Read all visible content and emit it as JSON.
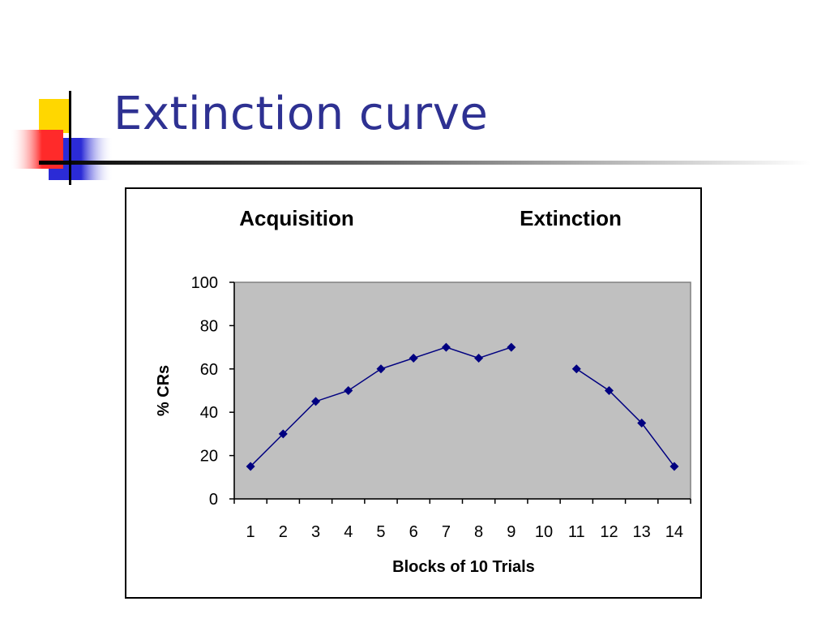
{
  "slide": {
    "title": "Extinction curve"
  },
  "colors": {
    "title": "#2E3192",
    "series": "#000080",
    "plot_area": "#C0C0C0",
    "deco_yellow": "#FFD700",
    "deco_red": "#FF2A2A",
    "deco_blue": "#2B2BD6"
  },
  "chart_data": {
    "type": "line",
    "annotations": [
      "Acquisition",
      "Extinction"
    ],
    "xlabel": "Blocks of 10 Trials",
    "ylabel": "% CRs",
    "categories": [
      "1",
      "2",
      "3",
      "4",
      "5",
      "6",
      "7",
      "8",
      "9",
      "10",
      "11",
      "12",
      "13",
      "14"
    ],
    "ylim": [
      0,
      100
    ],
    "yticks": [
      "0",
      "20",
      "40",
      "60",
      "80",
      "100"
    ],
    "grid": false,
    "legend": "none",
    "series": [
      {
        "values": [
          15,
          30,
          45,
          50,
          60,
          65,
          70,
          65,
          70,
          null,
          60,
          50,
          35,
          15
        ]
      }
    ]
  }
}
